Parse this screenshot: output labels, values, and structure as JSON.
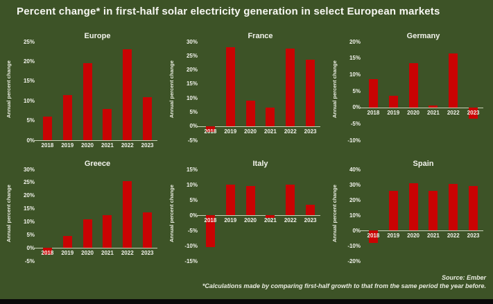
{
  "title": "Percent change* in first-half solar electricity generation in select European markets",
  "footer": {
    "source": "Source: Ember",
    "footnote": "*Calculations made by comparing first-half growth to that from the same period the year before."
  },
  "colors": {
    "background": "#3d5327",
    "bar": "#c90303",
    "axis_line": "#c9d4b9",
    "text": "#f2f3ec",
    "bottom_strip": "#090909"
  },
  "chart_data": [
    {
      "type": "bar",
      "title": "Europe",
      "ylabel": "Annual percent change",
      "xlabel": "",
      "categories": [
        "2018",
        "2019",
        "2020",
        "2021",
        "2022",
        "2023"
      ],
      "values": [
        6,
        11.5,
        19.5,
        8,
        23,
        11
      ],
      "ylim": [
        0,
        25
      ],
      "ticks": [
        0,
        5,
        10,
        15,
        20,
        25
      ],
      "grid": false,
      "legend": "none"
    },
    {
      "type": "bar",
      "title": "France",
      "ylabel": "Annual percent change",
      "xlabel": "",
      "categories": [
        "2018",
        "2019",
        "2020",
        "2021",
        "2022",
        "2023"
      ],
      "values": [
        -2,
        28,
        9,
        6.5,
        27.5,
        23.5
      ],
      "ylim": [
        -5,
        30
      ],
      "ticks": [
        -5,
        0,
        5,
        10,
        15,
        20,
        25,
        30
      ],
      "grid": false,
      "legend": "none"
    },
    {
      "type": "bar",
      "title": "Germany",
      "ylabel": "Annual percent change",
      "xlabel": "",
      "categories": [
        "2018",
        "2019",
        "2020",
        "2021",
        "2022",
        "2023"
      ],
      "values": [
        8.5,
        3.5,
        13.5,
        0.5,
        16.5,
        -3.5
      ],
      "ylim": [
        -10,
        20
      ],
      "ticks": [
        -10,
        -5,
        0,
        5,
        10,
        15,
        20
      ],
      "grid": false,
      "legend": "none"
    },
    {
      "type": "bar",
      "title": "Greece",
      "ylabel": "Annual percent change",
      "xlabel": "",
      "categories": [
        "2018",
        "2019",
        "2020",
        "2021",
        "2022",
        "2023"
      ],
      "values": [
        -2.5,
        4.5,
        11,
        12.5,
        25.5,
        13.5
      ],
      "ylim": [
        -5,
        30
      ],
      "ticks": [
        -5,
        0,
        5,
        10,
        15,
        20,
        25,
        30
      ],
      "grid": false,
      "legend": "none"
    },
    {
      "type": "bar",
      "title": "Italy",
      "ylabel": "Annual percent change",
      "xlabel": "",
      "categories": [
        "2018",
        "2019",
        "2020",
        "2021",
        "2022",
        "2023"
      ],
      "values": [
        -10.5,
        10,
        9.5,
        -1,
        10,
        3.5
      ],
      "ylim": [
        -15,
        15
      ],
      "ticks": [
        -15,
        -10,
        -5,
        0,
        5,
        10,
        15
      ],
      "grid": false,
      "legend": "none"
    },
    {
      "type": "bar",
      "title": "Spain",
      "ylabel": "Annual percent change",
      "xlabel": "",
      "categories": [
        "2018",
        "2019",
        "2020",
        "2021",
        "2022",
        "2023"
      ],
      "values": [
        -8,
        26,
        31,
        26,
        30.5,
        29
      ],
      "ylim": [
        -20,
        40
      ],
      "ticks": [
        -20,
        -10,
        0,
        10,
        20,
        30,
        40
      ],
      "grid": false,
      "legend": "none"
    }
  ]
}
